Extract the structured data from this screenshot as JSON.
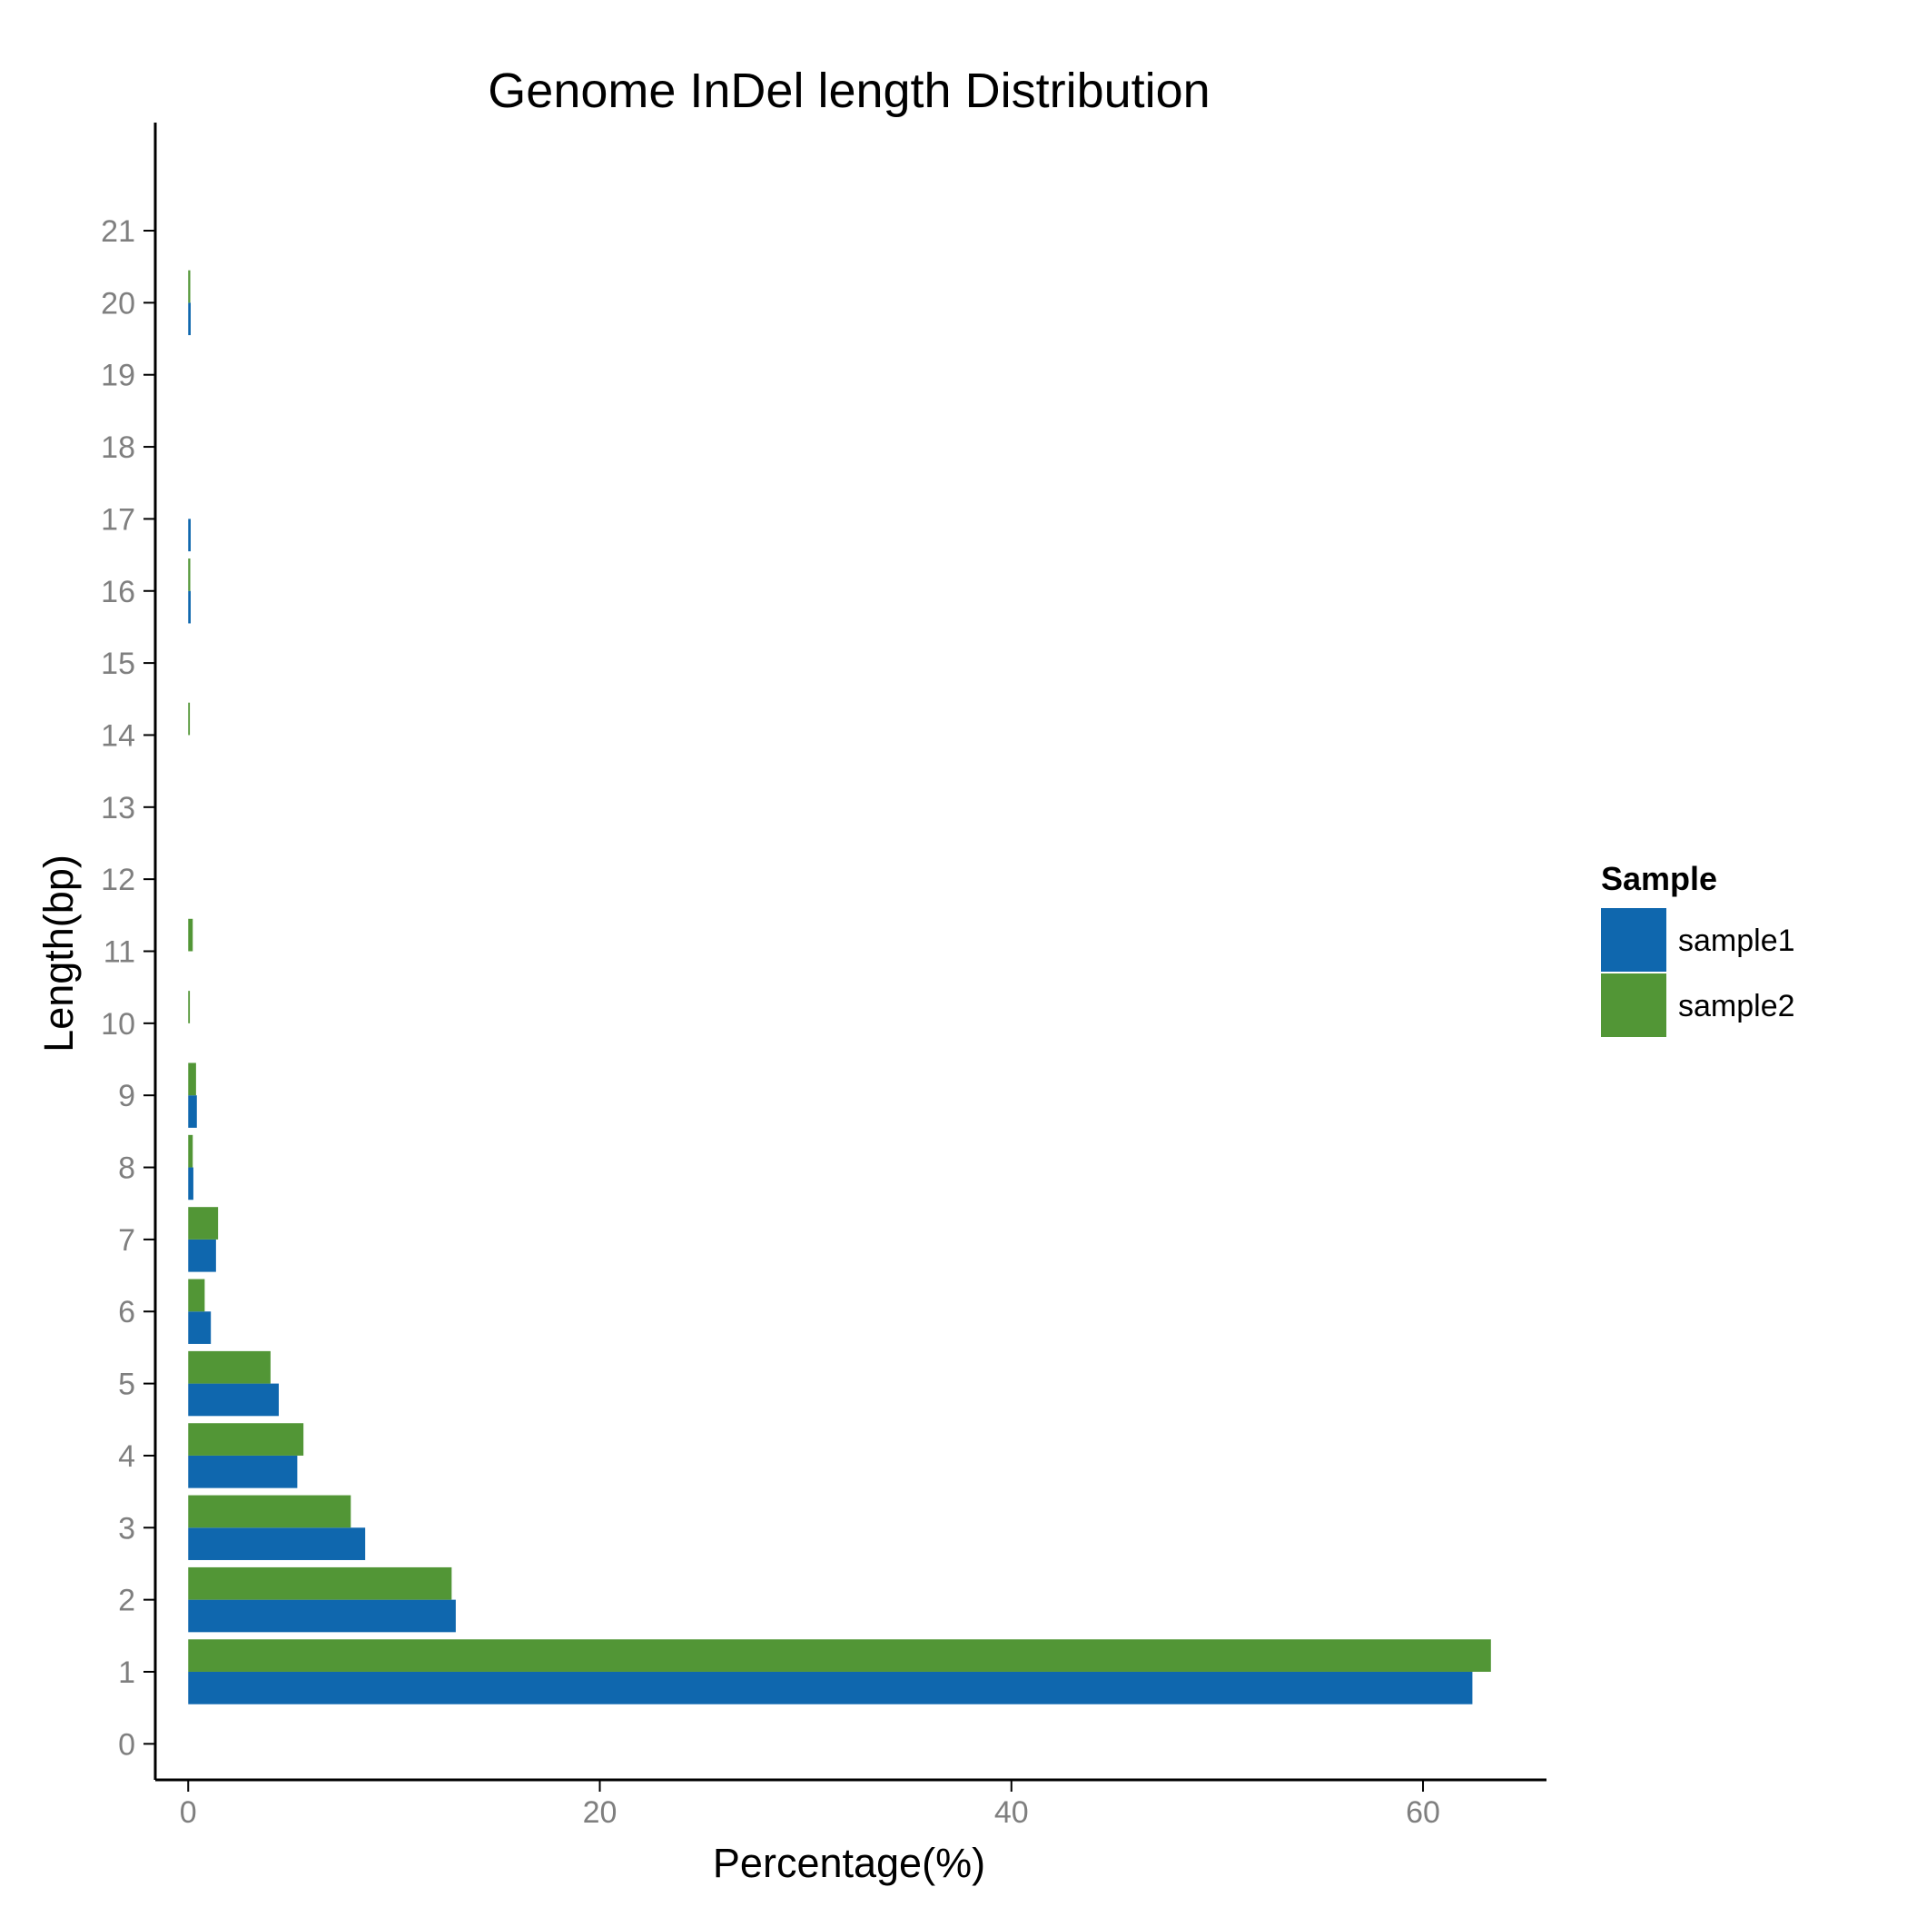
{
  "chart_data": {
    "type": "bar",
    "orientation": "horizontal",
    "title": "Genome InDel length Distribution",
    "xlabel": "Percentage(%)",
    "ylabel": "Length(bp)",
    "xlim": [
      -1.6,
      66
    ],
    "x_ticks": [
      0,
      20,
      40,
      60
    ],
    "ylim": [
      -0.5,
      22.5
    ],
    "y_ticks": [
      0,
      1,
      2,
      3,
      4,
      5,
      6,
      7,
      8,
      9,
      10,
      11,
      12,
      13,
      14,
      15,
      16,
      17,
      18,
      19,
      20,
      21
    ],
    "categories": [
      1,
      2,
      3,
      4,
      5,
      6,
      7,
      8,
      9,
      10,
      11,
      14,
      16,
      17,
      20
    ],
    "series": [
      {
        "name": "sample1",
        "color": "#0f67ae",
        "values": [
          62.4,
          13.0,
          8.6,
          5.3,
          4.4,
          1.1,
          1.35,
          0.25,
          0.42,
          0,
          0,
          0,
          0.12,
          0.12,
          0.12
        ]
      },
      {
        "name": "sample2",
        "color": "#529636",
        "values": [
          63.3,
          12.8,
          7.9,
          5.6,
          4.0,
          0.8,
          1.45,
          0.22,
          0.38,
          0.08,
          0.22,
          0.08,
          0.1,
          0,
          0.1
        ]
      }
    ],
    "grid": false,
    "legend": {
      "title": "Sample",
      "position": "right"
    }
  }
}
